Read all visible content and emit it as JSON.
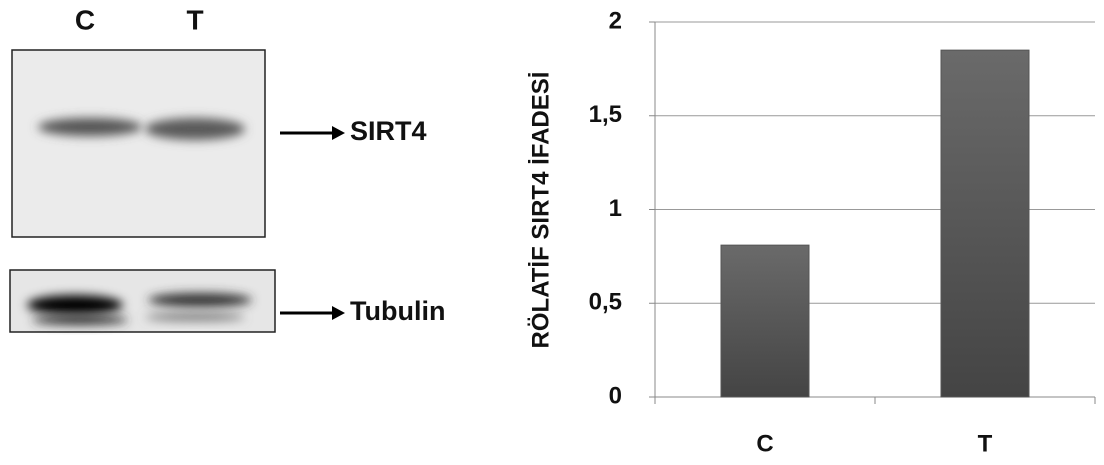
{
  "blot": {
    "lanes": [
      "C",
      "T"
    ],
    "bands": [
      "SIRT4",
      "Tubulin"
    ]
  },
  "chart_data": {
    "type": "bar",
    "ylabel": "RÖLATİF SIRT4 İFADESİ",
    "categories": [
      "C",
      "T"
    ],
    "values": [
      0.81,
      1.85
    ],
    "color": "#555555",
    "ylim": [
      0,
      2
    ],
    "yticks": [
      0,
      {
        "value": 0.5,
        "label": "0,5"
      },
      1,
      {
        "value": 1.5,
        "label": "1,5"
      },
      2
    ],
    "grid": true
  }
}
